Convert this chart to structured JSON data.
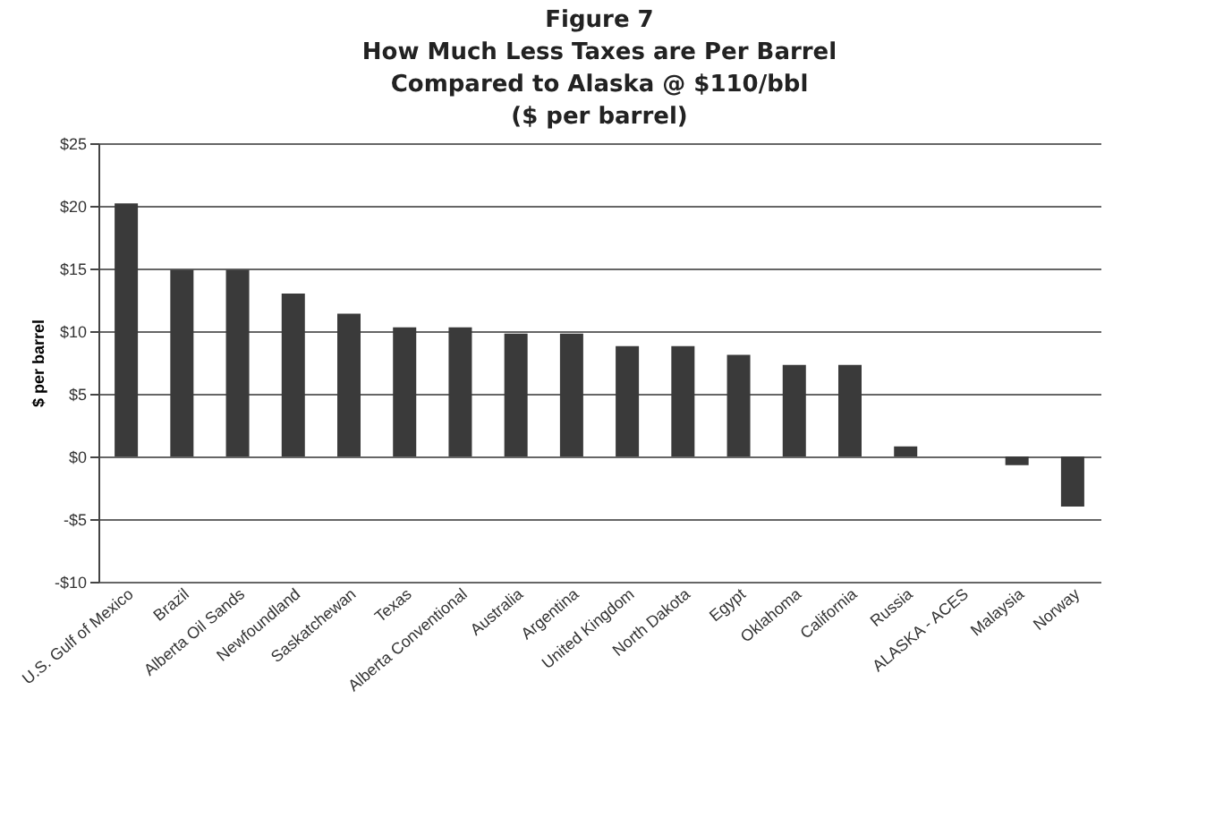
{
  "chart_data": {
    "type": "bar",
    "title": "Figure 7\nHow Much Less Taxes are Per Barrel\nCompared to Alaska @ $110/bbl\n($ per barrel)",
    "ylabel": "$ per barrel",
    "categories": [
      "U.S. Gulf of Mexico",
      "Brazil",
      "Alberta Oil Sands",
      "Newfoundland",
      "Saskatchewan",
      "Texas",
      "Alberta Conventional",
      "Australia",
      "Argentina",
      "United Kingdom",
      "North Dakota",
      "Egypt",
      "Oklahoma",
      "California",
      "Russia",
      "ALASKA - ACES",
      "Malaysia",
      "Norway"
    ],
    "values": [
      20.2,
      14.9,
      14.9,
      13.0,
      11.4,
      10.3,
      10.3,
      9.8,
      9.8,
      8.8,
      8.8,
      8.1,
      7.3,
      7.3,
      0.8,
      0,
      -0.7,
      -4.0
    ],
    "color": "#3a3a3a",
    "ylim": [
      -10,
      25
    ],
    "yticks": [
      {
        "value": -10,
        "label": "-$10"
      },
      {
        "value": -5,
        "label": "-$5"
      },
      {
        "value": 0,
        "label": "$0"
      },
      {
        "value": 5,
        "label": "$5"
      },
      {
        "value": 10,
        "label": "$10"
      },
      {
        "value": 15,
        "label": "$15"
      },
      {
        "value": 20,
        "label": "$20"
      },
      {
        "value": 25,
        "label": "$25"
      }
    ],
    "grid": "y"
  }
}
